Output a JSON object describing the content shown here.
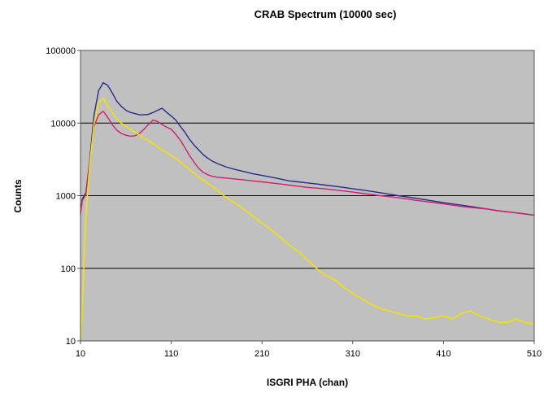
{
  "chart_data": {
    "type": "line",
    "title": "CRAB Spectrum (10000 sec)",
    "xlabel": "ISGRI PHA (chan)",
    "ylabel": "Counts",
    "xlim": [
      10,
      510
    ],
    "ylim": [
      10,
      100000
    ],
    "y_scale": "log",
    "x_ticks": [
      10,
      110,
      210,
      310,
      410,
      510
    ],
    "y_ticks": [
      10,
      100,
      1000,
      10000,
      100000
    ],
    "y_tick_labels": [
      "10",
      "100",
      "1000",
      "10000",
      "100000"
    ],
    "grid": "horizontal",
    "legend": "none",
    "plot_background": "#c0c0c0",
    "series": [
      {
        "color": "#2a2a8a",
        "x": [
          10,
          12,
          16,
          20,
          25,
          30,
          35,
          40,
          45,
          50,
          55,
          60,
          65,
          70,
          75,
          80,
          85,
          90,
          95,
          100,
          105,
          110,
          115,
          120,
          125,
          130,
          135,
          140,
          145,
          150,
          155,
          160,
          170,
          180,
          190,
          200,
          210,
          220,
          230,
          240,
          250,
          260,
          270,
          280,
          290,
          300,
          310,
          320,
          330,
          340,
          350,
          360,
          370,
          380,
          390,
          400,
          410,
          420,
          430,
          440,
          450,
          460,
          470,
          480,
          490,
          500,
          510
        ],
        "y": [
          600,
          900,
          1100,
          3000,
          13000,
          28000,
          36000,
          33000,
          26000,
          20000,
          17000,
          15000,
          14000,
          13500,
          13000,
          13000,
          13200,
          14000,
          15000,
          16000,
          14000,
          12500,
          11000,
          9000,
          7500,
          6000,
          5000,
          4300,
          3700,
          3300,
          3000,
          2800,
          2500,
          2300,
          2150,
          2000,
          1900,
          1800,
          1700,
          1600,
          1550,
          1500,
          1450,
          1400,
          1350,
          1300,
          1250,
          1200,
          1150,
          1100,
          1050,
          1000,
          960,
          920,
          880,
          840,
          800,
          770,
          740,
          710,
          680,
          650,
          620,
          600,
          580,
          560,
          540
        ]
      },
      {
        "color": "#d0206e",
        "x": [
          10,
          12,
          16,
          20,
          25,
          30,
          35,
          40,
          45,
          50,
          55,
          60,
          65,
          70,
          75,
          80,
          85,
          90,
          95,
          100,
          105,
          110,
          115,
          120,
          125,
          130,
          135,
          140,
          145,
          150,
          155,
          160,
          170,
          180,
          190,
          200,
          210,
          220,
          230,
          240,
          250,
          260,
          270,
          280,
          290,
          300,
          310,
          320,
          330,
          340,
          350,
          360,
          370,
          380,
          390,
          400,
          410,
          420,
          430,
          440,
          450,
          460,
          470,
          480,
          490,
          500,
          510
        ],
        "y": [
          550,
          850,
          1050,
          2800,
          9000,
          13000,
          14500,
          12000,
          9500,
          8000,
          7200,
          6800,
          6600,
          6700,
          7200,
          8200,
          9600,
          11000,
          10500,
          9500,
          8800,
          8200,
          7000,
          5800,
          4600,
          3600,
          2900,
          2400,
          2100,
          1950,
          1850,
          1800,
          1750,
          1700,
          1650,
          1600,
          1550,
          1500,
          1450,
          1400,
          1350,
          1300,
          1270,
          1240,
          1200,
          1160,
          1120,
          1080,
          1040,
          1000,
          970,
          940,
          900,
          860,
          830,
          800,
          770,
          740,
          710,
          690,
          670,
          650,
          620,
          600,
          580,
          560,
          540
        ]
      },
      {
        "color": "#f2e400",
        "x": [
          10,
          12,
          14,
          16,
          18,
          20,
          25,
          30,
          35,
          40,
          45,
          50,
          55,
          60,
          70,
          80,
          90,
          100,
          110,
          120,
          130,
          140,
          150,
          160,
          170,
          180,
          190,
          200,
          210,
          220,
          230,
          240,
          250,
          260,
          270,
          280,
          290,
          300,
          310,
          320,
          330,
          340,
          350,
          360,
          370,
          380,
          390,
          400,
          410,
          420,
          430,
          440,
          450,
          460,
          470,
          480,
          490,
          500,
          510
        ],
        "y": [
          10,
          30,
          150,
          500,
          1200,
          2500,
          10000,
          19000,
          22000,
          17000,
          14000,
          11500,
          10000,
          9000,
          7500,
          6200,
          5200,
          4300,
          3600,
          2900,
          2300,
          1800,
          1500,
          1200,
          950,
          800,
          650,
          520,
          420,
          340,
          270,
          210,
          170,
          130,
          100,
          80,
          70,
          55,
          45,
          38,
          32,
          28,
          26,
          24,
          22,
          22,
          20,
          21,
          22,
          20,
          24,
          26,
          22,
          20,
          18,
          18,
          20,
          18,
          17
        ]
      }
    ]
  }
}
